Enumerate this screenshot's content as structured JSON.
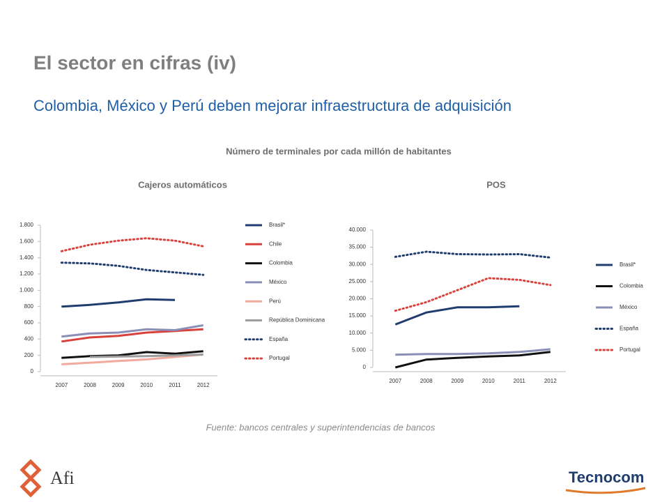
{
  "title": "El sector en cifras (iv)",
  "subtitle": "Colombia, México y Perú deben mejorar infraestructura de adquisición",
  "heading": "Número de terminales por cada millón de habitantes",
  "source": "Fuente: bancos centrales y superintendencias de bancos",
  "logos": [
    "Afi",
    "Tecnocom"
  ],
  "chart_data": [
    {
      "type": "line",
      "title": "Cajeros automáticos",
      "categories": [
        "2007",
        "2008",
        "2009",
        "2010",
        "2011",
        "2012"
      ],
      "ylim": [
        0,
        1800
      ],
      "yticks": [
        0,
        200,
        400,
        600,
        800,
        {
          "value": 1000,
          "label": "1.000"
        },
        {
          "value": 1200,
          "label": "1.200"
        },
        {
          "value": 1400,
          "label": "1.400"
        },
        {
          "value": 1600,
          "label": "1.600"
        },
        {
          "value": 1800,
          "label": "1.800"
        }
      ],
      "legend": "right",
      "series": [
        {
          "name": "Brasil*",
          "color": "#1f3d6e",
          "style": "solid",
          "values": [
            800,
            820,
            850,
            890,
            880,
            null
          ]
        },
        {
          "name": "Chile",
          "color": "#d9413b",
          "style": "solid",
          "values": [
            370,
            420,
            440,
            480,
            500,
            520
          ]
        },
        {
          "name": "Colombia",
          "color": "#111111",
          "style": "solid",
          "values": [
            170,
            190,
            200,
            240,
            220,
            250
          ]
        },
        {
          "name": "México",
          "color": "#8a8fb8",
          "style": "solid",
          "values": [
            430,
            470,
            480,
            520,
            510,
            570
          ]
        },
        {
          "name": "Perú",
          "color": "#f2aa9c",
          "style": "solid",
          "values": [
            90,
            110,
            130,
            150,
            180,
            210
          ]
        },
        {
          "name": "República Dominicana",
          "color": "#9c9c9c",
          "style": "solid",
          "values": [
            null,
            180,
            185,
            190,
            200,
            210
          ]
        },
        {
          "name": "España",
          "color": "#1f3d6e",
          "style": "dotted",
          "values": [
            1340,
            1330,
            1300,
            1250,
            1220,
            1190
          ]
        },
        {
          "name": "Portugal",
          "color": "#d9413b",
          "style": "dotted",
          "values": [
            1480,
            1560,
            1610,
            1640,
            1610,
            1540
          ]
        }
      ]
    },
    {
      "type": "line",
      "title": "POS",
      "categories": [
        "2007",
        "2008",
        "2009",
        "2010",
        "2011",
        "2012"
      ],
      "ylim": [
        0,
        40000
      ],
      "yticks": [
        0,
        {
          "value": 5000,
          "label": "5.000"
        },
        {
          "value": 10000,
          "label": "10.000"
        },
        {
          "value": 15000,
          "label": "15.000"
        },
        {
          "value": 20000,
          "label": "20.000"
        },
        {
          "value": 25000,
          "label": "25.000"
        },
        {
          "value": 30000,
          "label": "30.000"
        },
        {
          "value": 35000,
          "label": "35.000"
        },
        {
          "value": 40000,
          "label": "40.000"
        }
      ],
      "legend": "right",
      "series": [
        {
          "name": "Brasil*",
          "color": "#1f3d6e",
          "style": "solid",
          "values": [
            12500,
            16000,
            17500,
            17500,
            17800,
            null
          ]
        },
        {
          "name": "Colombia",
          "color": "#111111",
          "style": "solid",
          "values": [
            0,
            2300,
            2800,
            3200,
            3500,
            4500
          ]
        },
        {
          "name": "México",
          "color": "#8a8fb8",
          "style": "solid",
          "values": [
            3700,
            3900,
            3900,
            4100,
            4500,
            5300
          ]
        },
        {
          "name": "España",
          "color": "#1f3d6e",
          "style": "dotted",
          "values": [
            32200,
            33700,
            33000,
            32900,
            33000,
            32000
          ]
        },
        {
          "name": "Portugal",
          "color": "#d9413b",
          "style": "dotted",
          "values": [
            16500,
            19000,
            22500,
            26000,
            25500,
            24000
          ]
        }
      ]
    }
  ]
}
